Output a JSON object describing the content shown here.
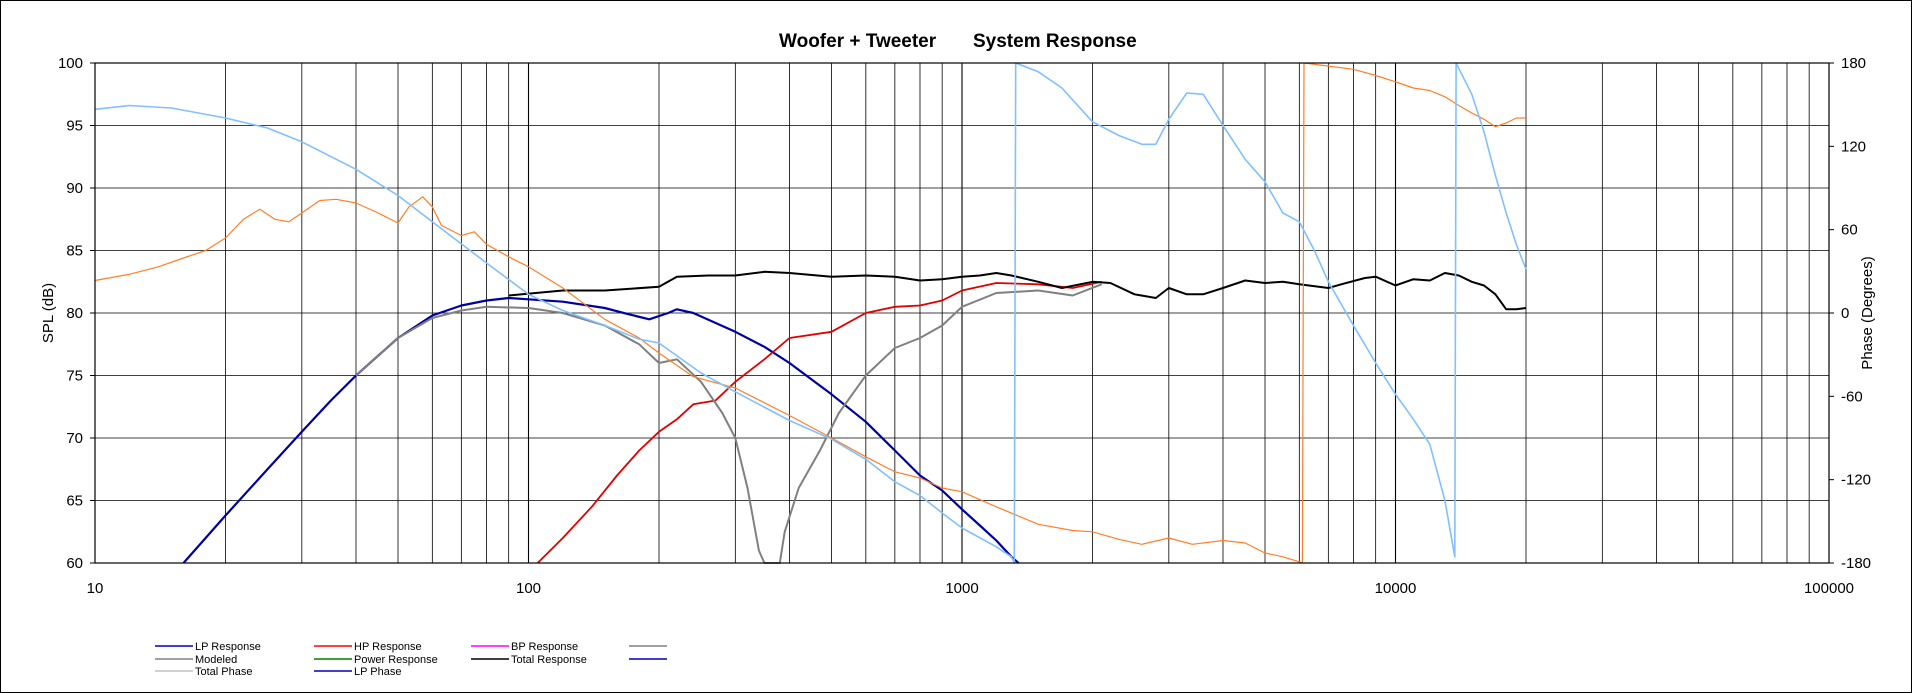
{
  "chart_data": {
    "type": "line",
    "title_left": "Woofer + Tweeter",
    "title_right": "System Response",
    "xscale": "log",
    "xlim": [
      10,
      100000
    ],
    "x_tick_labels": [
      "10",
      "100",
      "1000",
      "10000",
      "100000"
    ],
    "ylim": [
      60,
      100
    ],
    "y_tick_labels": [
      "60",
      "65",
      "70",
      "75",
      "80",
      "85",
      "90",
      "95",
      "100"
    ],
    "ylabel": "SPL (dB)",
    "y2lim": [
      -180,
      180
    ],
    "y2_tick_labels": [
      "-180",
      "-120",
      "-60",
      "0",
      "60",
      "120",
      "180"
    ],
    "y2label": "Phase (Degrees)",
    "grid": true,
    "legend_position": "bottom-left",
    "colors": {
      "lp": "#0000a0",
      "hp": "#e00000",
      "bp": "#ff00ff",
      "modeled": "#808080",
      "power": "#008000",
      "total": "#000000",
      "total_phase": "#ff7f27",
      "lp_phase": "#80c0ff",
      "grid": "#000000"
    },
    "legend": [
      {
        "label": "LP Response",
        "color": "#0000c0"
      },
      {
        "label": "HP Response",
        "color": "#ff0000"
      },
      {
        "label": "BP Response",
        "color": "#ff00ff"
      },
      {
        "label": "",
        "color": "#808080"
      },
      {
        "label": "Modeled",
        "color": "#808080"
      },
      {
        "label": "Power Response",
        "color": "#008000"
      },
      {
        "label": "Total Response",
        "color": "#000000"
      },
      {
        "label": "",
        "color": "#0000c0"
      },
      {
        "label": "Total Phase",
        "color": "#c0c0c0"
      },
      {
        "label": "LP Phase",
        "color": "#0000c0"
      }
    ],
    "series": [
      {
        "key": "lp",
        "axis": "left",
        "width": 2.2,
        "points": [
          [
            16,
            60
          ],
          [
            20,
            63.8
          ],
          [
            25,
            67.5
          ],
          [
            30,
            70.5
          ],
          [
            35,
            73
          ],
          [
            40,
            75
          ],
          [
            50,
            78
          ],
          [
            60,
            79.8
          ],
          [
            70,
            80.6
          ],
          [
            80,
            81
          ],
          [
            90,
            81.2
          ],
          [
            100,
            81.1
          ],
          [
            120,
            80.9
          ],
          [
            150,
            80.4
          ],
          [
            170,
            79.9
          ],
          [
            190,
            79.5
          ],
          [
            210,
            80
          ],
          [
            220,
            80.3
          ],
          [
            240,
            80
          ],
          [
            300,
            78.5
          ],
          [
            350,
            77.3
          ],
          [
            400,
            76
          ],
          [
            500,
            73.5
          ],
          [
            600,
            71.3
          ],
          [
            700,
            69
          ],
          [
            800,
            67
          ],
          [
            900,
            65.8
          ],
          [
            1000,
            64.3
          ],
          [
            1100,
            63
          ],
          [
            1200,
            61.8
          ],
          [
            1300,
            60.5
          ],
          [
            1350,
            60
          ]
        ]
      },
      {
        "key": "hp",
        "axis": "left",
        "width": 1.8,
        "points": [
          [
            105,
            60
          ],
          [
            120,
            62
          ],
          [
            140,
            64.5
          ],
          [
            160,
            67
          ],
          [
            180,
            69
          ],
          [
            200,
            70.5
          ],
          [
            220,
            71.5
          ],
          [
            240,
            72.7
          ],
          [
            270,
            73
          ],
          [
            300,
            74.5
          ],
          [
            350,
            76.3
          ],
          [
            400,
            78
          ],
          [
            500,
            78.5
          ],
          [
            600,
            80
          ],
          [
            700,
            80.5
          ],
          [
            800,
            80.6
          ],
          [
            900,
            81
          ],
          [
            1000,
            81.8
          ],
          [
            1200,
            82.4
          ],
          [
            1500,
            82.3
          ],
          [
            1800,
            82
          ],
          [
            2100,
            82.5
          ]
        ]
      },
      {
        "key": "modeled",
        "axis": "left",
        "width": 2,
        "points": [
          [
            40,
            75
          ],
          [
            50,
            78
          ],
          [
            60,
            79.6
          ],
          [
            70,
            80.2
          ],
          [
            80,
            80.5
          ],
          [
            100,
            80.4
          ],
          [
            120,
            80
          ],
          [
            150,
            79
          ],
          [
            180,
            77.5
          ],
          [
            200,
            76
          ],
          [
            220,
            76.3
          ],
          [
            250,
            74.5
          ],
          [
            280,
            72
          ],
          [
            300,
            70
          ],
          [
            320,
            66
          ],
          [
            340,
            61
          ],
          [
            350,
            60
          ],
          [
            380,
            60
          ],
          [
            390,
            62.5
          ],
          [
            420,
            66
          ],
          [
            470,
            69
          ],
          [
            520,
            72
          ],
          [
            600,
            75
          ],
          [
            700,
            77.2
          ],
          [
            800,
            78
          ],
          [
            900,
            79
          ],
          [
            1000,
            80.5
          ],
          [
            1200,
            81.6
          ],
          [
            1500,
            81.8
          ],
          [
            1800,
            81.4
          ],
          [
            2100,
            82.3
          ]
        ]
      },
      {
        "key": "total",
        "axis": "left",
        "width": 2,
        "points": [
          [
            90,
            81.4
          ],
          [
            120,
            81.8
          ],
          [
            150,
            81.8
          ],
          [
            200,
            82.1
          ],
          [
            220,
            82.9
          ],
          [
            260,
            83
          ],
          [
            300,
            83
          ],
          [
            350,
            83.3
          ],
          [
            400,
            83.2
          ],
          [
            500,
            82.9
          ],
          [
            600,
            83
          ],
          [
            700,
            82.9
          ],
          [
            800,
            82.6
          ],
          [
            900,
            82.7
          ],
          [
            1000,
            82.9
          ],
          [
            1100,
            83
          ],
          [
            1200,
            83.2
          ],
          [
            1300,
            83
          ],
          [
            1500,
            82.5
          ],
          [
            1700,
            82
          ],
          [
            2000,
            82.5
          ],
          [
            2200,
            82.4
          ],
          [
            2500,
            81.5
          ],
          [
            2800,
            81.2
          ],
          [
            3000,
            82
          ],
          [
            3300,
            81.5
          ],
          [
            3600,
            81.5
          ],
          [
            4000,
            82
          ],
          [
            4500,
            82.6
          ],
          [
            5000,
            82.4
          ],
          [
            5500,
            82.5
          ],
          [
            6000,
            82.3
          ],
          [
            7000,
            82
          ],
          [
            7500,
            82.3
          ],
          [
            8500,
            82.8
          ],
          [
            9000,
            82.9
          ],
          [
            10000,
            82.2
          ],
          [
            11000,
            82.7
          ],
          [
            12000,
            82.6
          ],
          [
            13000,
            83.2
          ],
          [
            14000,
            83
          ],
          [
            15000,
            82.5
          ],
          [
            16000,
            82.2
          ],
          [
            17000,
            81.5
          ],
          [
            18000,
            80.3
          ],
          [
            19000,
            80.3
          ],
          [
            20000,
            80.4
          ]
        ]
      },
      {
        "key": "total_phase",
        "axis": "left",
        "width": 1.2,
        "points": [
          [
            10,
            82.6
          ],
          [
            12,
            83.1
          ],
          [
            14,
            83.7
          ],
          [
            16,
            84.4
          ],
          [
            18,
            85
          ],
          [
            20,
            86
          ],
          [
            22,
            87.5
          ],
          [
            24,
            88.3
          ],
          [
            26,
            87.5
          ],
          [
            28,
            87.3
          ],
          [
            30,
            88
          ],
          [
            33,
            89
          ],
          [
            36,
            89.1
          ],
          [
            40,
            88.8
          ],
          [
            45,
            88
          ],
          [
            50,
            87.2
          ],
          [
            53,
            88.5
          ],
          [
            57,
            89.3
          ],
          [
            60,
            88.5
          ],
          [
            63,
            87
          ],
          [
            70,
            86.2
          ],
          [
            75,
            86.5
          ],
          [
            80,
            85.5
          ],
          [
            90,
            84.5
          ],
          [
            100,
            83.7
          ],
          [
            120,
            82
          ],
          [
            150,
            79.5
          ],
          [
            180,
            78
          ],
          [
            200,
            76.8
          ],
          [
            240,
            74.9
          ],
          [
            300,
            74
          ],
          [
            400,
            71.8
          ],
          [
            500,
            70
          ],
          [
            600,
            68.5
          ],
          [
            700,
            67.3
          ],
          [
            800,
            66.8
          ],
          [
            900,
            66
          ],
          [
            1000,
            65.7
          ],
          [
            1200,
            64.5
          ],
          [
            1500,
            63.1
          ],
          [
            1800,
            62.6
          ],
          [
            2000,
            62.5
          ],
          [
            2300,
            61.9
          ],
          [
            2600,
            61.5
          ],
          [
            3000,
            62
          ],
          [
            3400,
            61.5
          ],
          [
            4000,
            61.8
          ],
          [
            4500,
            61.6
          ],
          [
            5000,
            60.8
          ],
          [
            5500,
            60.5
          ],
          [
            6000,
            60.1
          ],
          [
            6100,
            60
          ],
          [
            6150,
            100
          ],
          [
            8000,
            99.5
          ],
          [
            9000,
            99
          ],
          [
            10000,
            98.5
          ],
          [
            11000,
            98
          ],
          [
            12000,
            97.8
          ],
          [
            13000,
            97.3
          ],
          [
            14000,
            96.6
          ],
          [
            15000,
            96
          ],
          [
            16000,
            95.5
          ],
          [
            17000,
            94.9
          ],
          [
            18000,
            95.2
          ],
          [
            19000,
            95.6
          ],
          [
            20000,
            95.6
          ]
        ]
      },
      {
        "key": "lp_phase",
        "axis": "left",
        "width": 1.6,
        "points": [
          [
            10,
            96.3
          ],
          [
            12,
            96.6
          ],
          [
            15,
            96.4
          ],
          [
            20,
            95.6
          ],
          [
            25,
            94.8
          ],
          [
            30,
            93.7
          ],
          [
            40,
            91.5
          ],
          [
            50,
            89.4
          ],
          [
            60,
            87.3
          ],
          [
            80,
            84
          ],
          [
            100,
            81.5
          ],
          [
            120,
            80.2
          ],
          [
            150,
            79
          ],
          [
            180,
            77.9
          ],
          [
            200,
            77.6
          ],
          [
            250,
            75.2
          ],
          [
            300,
            73.7
          ],
          [
            400,
            71.4
          ],
          [
            500,
            69.9
          ],
          [
            600,
            68.3
          ],
          [
            700,
            66.5
          ],
          [
            800,
            65.4
          ],
          [
            900,
            64
          ],
          [
            1000,
            62.8
          ],
          [
            1200,
            61.3
          ],
          [
            1300,
            60.5
          ],
          [
            1320,
            60
          ],
          [
            1330,
            100
          ],
          [
            1500,
            99.3
          ],
          [
            1700,
            98
          ],
          [
            2000,
            95.3
          ],
          [
            2300,
            94.2
          ],
          [
            2600,
            93.5
          ],
          [
            2800,
            93.5
          ],
          [
            3000,
            95.5
          ],
          [
            3300,
            97.6
          ],
          [
            3600,
            97.5
          ],
          [
            4000,
            95
          ],
          [
            4500,
            92.3
          ],
          [
            5000,
            90.5
          ],
          [
            5500,
            88
          ],
          [
            6000,
            87.3
          ],
          [
            6500,
            85
          ],
          [
            7000,
            82.5
          ],
          [
            8000,
            79
          ],
          [
            9000,
            76
          ],
          [
            10000,
            73.5
          ],
          [
            11000,
            71.5
          ],
          [
            12000,
            69.5
          ],
          [
            13000,
            65
          ],
          [
            13700,
            60.5
          ],
          [
            13800,
            100
          ],
          [
            15000,
            97.5
          ],
          [
            16000,
            94.5
          ],
          [
            17000,
            91
          ],
          [
            18000,
            88
          ],
          [
            19000,
            85.5
          ],
          [
            20000,
            83.5
          ]
        ]
      }
    ]
  }
}
